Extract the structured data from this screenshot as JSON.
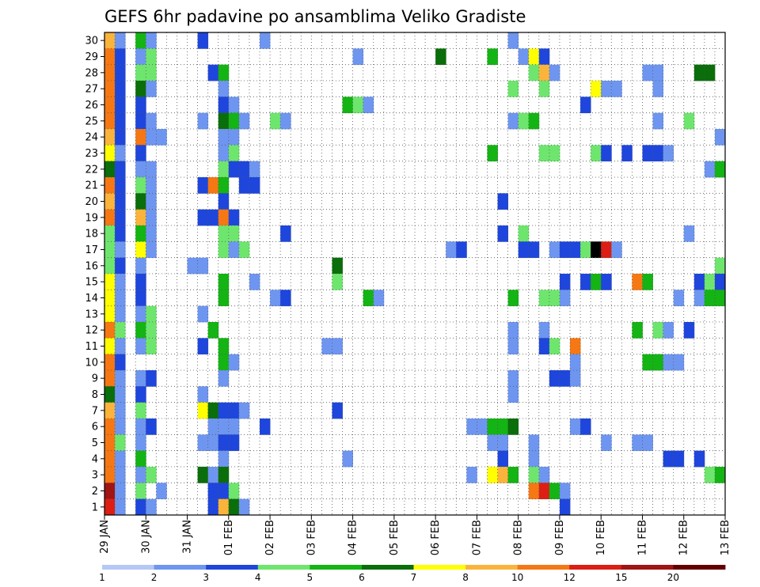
{
  "chart_data": {
    "type": "heatmap",
    "title": "GEFS 6hr padavine po ansamblima Veliko Gradiste",
    "xlabel": "",
    "ylabel": "",
    "x_ticks": [
      "29 JAN",
      "30 JAN",
      "31 JAN",
      "01 FEB",
      "02 FEB",
      "03 FEB",
      "04 FEB",
      "05 FEB",
      "06 FEB",
      "07 FEB",
      "08 FEB",
      "09 FEB",
      "10 FEB",
      "11 FEB",
      "12 FEB",
      "13 FEB"
    ],
    "y_ticks": [
      1,
      2,
      3,
      4,
      5,
      6,
      7,
      8,
      9,
      10,
      11,
      12,
      13,
      14,
      15,
      16,
      17,
      18,
      19,
      20,
      21,
      22,
      23,
      24,
      25,
      26,
      27,
      28,
      29,
      30
    ],
    "xlim": [
      0,
      60
    ],
    "ylim": [
      0.5,
      30.5
    ],
    "x_unit": "6-hour steps from 29 JAN 00Z",
    "grid": true,
    "legend": "bottom",
    "colorbar": {
      "labels": [
        "1",
        "2",
        "3",
        "4",
        "5",
        "6",
        "7",
        "8",
        "10",
        "12",
        "15",
        "20"
      ],
      "colors": [
        "#b4c8f5",
        "#6e96f0",
        "#1e46dc",
        "#6ee66e",
        "#14b414",
        "#0a6e0a",
        "#ffff00",
        "#fab43c",
        "#f57814",
        "#dc1e14",
        "#a01414",
        "#640000"
      ]
    },
    "cells": [
      [
        30,
        0,
        7
      ],
      [
        30,
        1,
        1
      ],
      [
        30,
        3,
        4
      ],
      [
        30,
        4,
        1
      ],
      [
        30,
        9,
        2
      ],
      [
        30,
        15,
        1
      ],
      [
        30,
        39,
        1
      ],
      [
        29,
        0,
        8
      ],
      [
        29,
        1,
        2
      ],
      [
        29,
        3,
        1
      ],
      [
        29,
        4,
        3
      ],
      [
        29,
        24,
        1
      ],
      [
        29,
        32,
        5
      ],
      [
        29,
        37,
        4
      ],
      [
        29,
        40,
        1
      ],
      [
        29,
        41,
        6
      ],
      [
        29,
        42,
        2
      ],
      [
        28,
        0,
        8
      ],
      [
        28,
        1,
        2
      ],
      [
        28,
        3,
        3
      ],
      [
        28,
        4,
        3
      ],
      [
        28,
        10,
        2
      ],
      [
        28,
        11,
        4
      ],
      [
        28,
        41,
        3
      ],
      [
        28,
        42,
        7
      ],
      [
        28,
        43,
        1
      ],
      [
        28,
        52,
        1
      ],
      [
        28,
        53,
        1
      ],
      [
        28,
        57,
        5
      ],
      [
        28,
        58,
        5
      ],
      [
        27,
        0,
        8
      ],
      [
        27,
        1,
        2
      ],
      [
        27,
        3,
        5
      ],
      [
        27,
        4,
        1
      ],
      [
        27,
        11,
        1
      ],
      [
        27,
        39,
        3
      ],
      [
        27,
        42,
        3
      ],
      [
        27,
        47,
        6
      ],
      [
        27,
        48,
        1
      ],
      [
        27,
        49,
        1
      ],
      [
        27,
        53,
        1
      ],
      [
        26,
        0,
        8
      ],
      [
        26,
        1,
        2
      ],
      [
        26,
        3,
        2
      ],
      [
        26,
        11,
        2
      ],
      [
        26,
        12,
        1
      ],
      [
        26,
        23,
        4
      ],
      [
        26,
        24,
        3
      ],
      [
        26,
        25,
        1
      ],
      [
        26,
        46,
        2
      ],
      [
        25,
        0,
        8
      ],
      [
        25,
        1,
        2
      ],
      [
        25,
        3,
        2
      ],
      [
        25,
        4,
        1
      ],
      [
        25,
        9,
        1
      ],
      [
        25,
        11,
        5
      ],
      [
        25,
        12,
        4
      ],
      [
        25,
        13,
        1
      ],
      [
        25,
        16,
        3
      ],
      [
        25,
        17,
        1
      ],
      [
        25,
        39,
        1
      ],
      [
        25,
        40,
        3
      ],
      [
        25,
        41,
        4
      ],
      [
        25,
        53,
        1
      ],
      [
        25,
        56,
        3
      ],
      [
        24,
        0,
        7
      ],
      [
        24,
        1,
        2
      ],
      [
        24,
        3,
        8
      ],
      [
        24,
        4,
        1
      ],
      [
        24,
        5,
        1
      ],
      [
        24,
        11,
        1
      ],
      [
        24,
        12,
        1
      ],
      [
        24,
        59,
        1
      ],
      [
        23,
        0,
        6
      ],
      [
        23,
        1,
        1
      ],
      [
        23,
        3,
        2
      ],
      [
        23,
        11,
        1
      ],
      [
        23,
        12,
        3
      ],
      [
        23,
        37,
        4
      ],
      [
        23,
        42,
        3
      ],
      [
        23,
        43,
        3
      ],
      [
        23,
        47,
        3
      ],
      [
        23,
        48,
        2
      ],
      [
        23,
        50,
        2
      ],
      [
        23,
        52,
        2
      ],
      [
        23,
        53,
        2
      ],
      [
        23,
        54,
        1
      ],
      [
        22,
        0,
        5
      ],
      [
        22,
        1,
        2
      ],
      [
        22,
        3,
        1
      ],
      [
        22,
        4,
        1
      ],
      [
        22,
        11,
        3
      ],
      [
        22,
        12,
        2
      ],
      [
        22,
        13,
        2
      ],
      [
        22,
        14,
        1
      ],
      [
        22,
        58,
        1
      ],
      [
        22,
        59,
        4
      ],
      [
        21,
        0,
        8
      ],
      [
        21,
        1,
        2
      ],
      [
        21,
        3,
        3
      ],
      [
        21,
        4,
        1
      ],
      [
        21,
        9,
        2
      ],
      [
        21,
        10,
        8
      ],
      [
        21,
        11,
        4
      ],
      [
        21,
        13,
        2
      ],
      [
        21,
        14,
        2
      ],
      [
        20,
        0,
        7
      ],
      [
        20,
        1,
        2
      ],
      [
        20,
        3,
        5
      ],
      [
        20,
        4,
        1
      ],
      [
        20,
        11,
        2
      ],
      [
        20,
        38,
        2
      ],
      [
        19,
        0,
        8
      ],
      [
        19,
        1,
        2
      ],
      [
        19,
        3,
        7
      ],
      [
        19,
        4,
        1
      ],
      [
        19,
        9,
        2
      ],
      [
        19,
        10,
        2
      ],
      [
        19,
        11,
        8
      ],
      [
        19,
        12,
        2
      ],
      [
        18,
        0,
        3
      ],
      [
        18,
        1,
        2
      ],
      [
        18,
        3,
        4
      ],
      [
        18,
        4,
        1
      ],
      [
        18,
        11,
        3
      ],
      [
        18,
        12,
        3
      ],
      [
        18,
        17,
        2
      ],
      [
        18,
        38,
        2
      ],
      [
        18,
        40,
        3
      ],
      [
        18,
        56,
        1
      ],
      [
        17,
        0,
        3
      ],
      [
        17,
        1,
        1
      ],
      [
        17,
        3,
        6
      ],
      [
        17,
        4,
        1
      ],
      [
        17,
        11,
        3
      ],
      [
        17,
        12,
        1
      ],
      [
        17,
        13,
        3
      ],
      [
        17,
        33,
        1
      ],
      [
        17,
        34,
        2
      ],
      [
        17,
        40,
        2
      ],
      [
        17,
        41,
        2
      ],
      [
        17,
        43,
        1
      ],
      [
        17,
        44,
        2
      ],
      [
        17,
        45,
        2
      ],
      [
        17,
        46,
        3
      ],
      [
        17,
        47,
        12
      ],
      [
        17,
        48,
        9
      ],
      [
        17,
        49,
        1
      ],
      [
        16,
        0,
        3
      ],
      [
        16,
        1,
        2
      ],
      [
        16,
        3,
        1
      ],
      [
        16,
        8,
        1
      ],
      [
        16,
        9,
        1
      ],
      [
        16,
        22,
        5
      ],
      [
        16,
        59,
        3
      ],
      [
        15,
        0,
        6
      ],
      [
        15,
        1,
        1
      ],
      [
        15,
        3,
        2
      ],
      [
        15,
        11,
        4
      ],
      [
        15,
        14,
        1
      ],
      [
        15,
        22,
        3
      ],
      [
        15,
        44,
        2
      ],
      [
        15,
        46,
        2
      ],
      [
        15,
        47,
        4
      ],
      [
        15,
        48,
        2
      ],
      [
        15,
        51,
        8
      ],
      [
        15,
        52,
        4
      ],
      [
        15,
        57,
        2
      ],
      [
        15,
        58,
        3
      ],
      [
        15,
        59,
        2
      ],
      [
        14,
        0,
        6
      ],
      [
        14,
        1,
        1
      ],
      [
        14,
        3,
        2
      ],
      [
        14,
        11,
        4
      ],
      [
        14,
        16,
        1
      ],
      [
        14,
        17,
        2
      ],
      [
        14,
        25,
        4
      ],
      [
        14,
        26,
        1
      ],
      [
        14,
        39,
        4
      ],
      [
        14,
        42,
        3
      ],
      [
        14,
        43,
        3
      ],
      [
        14,
        44,
        1
      ],
      [
        14,
        55,
        1
      ],
      [
        14,
        57,
        1
      ],
      [
        14,
        58,
        4
      ],
      [
        14,
        59,
        4
      ],
      [
        13,
        0,
        6
      ],
      [
        13,
        1,
        1
      ],
      [
        13,
        3,
        1
      ],
      [
        13,
        4,
        3
      ],
      [
        13,
        9,
        1
      ],
      [
        12,
        0,
        8
      ],
      [
        12,
        1,
        3
      ],
      [
        12,
        3,
        4
      ],
      [
        12,
        4,
        3
      ],
      [
        12,
        10,
        4
      ],
      [
        12,
        39,
        1
      ],
      [
        12,
        42,
        1
      ],
      [
        12,
        51,
        4
      ],
      [
        12,
        53,
        3
      ],
      [
        12,
        54,
        1
      ],
      [
        12,
        56,
        2
      ],
      [
        11,
        0,
        6
      ],
      [
        11,
        1,
        1
      ],
      [
        11,
        3,
        1
      ],
      [
        11,
        4,
        3
      ],
      [
        11,
        9,
        2
      ],
      [
        11,
        11,
        4
      ],
      [
        11,
        21,
        1
      ],
      [
        11,
        22,
        1
      ],
      [
        11,
        39,
        1
      ],
      [
        11,
        42,
        2
      ],
      [
        11,
        43,
        3
      ],
      [
        11,
        45,
        8
      ],
      [
        10,
        0,
        8
      ],
      [
        10,
        1,
        2
      ],
      [
        10,
        11,
        4
      ],
      [
        10,
        12,
        1
      ],
      [
        10,
        45,
        1
      ],
      [
        10,
        52,
        4
      ],
      [
        10,
        53,
        4
      ],
      [
        10,
        54,
        1
      ],
      [
        10,
        55,
        1
      ],
      [
        9,
        0,
        8
      ],
      [
        9,
        1,
        1
      ],
      [
        9,
        3,
        1
      ],
      [
        9,
        4,
        2
      ],
      [
        9,
        11,
        1
      ],
      [
        9,
        39,
        1
      ],
      [
        9,
        43,
        2
      ],
      [
        9,
        44,
        2
      ],
      [
        9,
        45,
        1
      ],
      [
        8,
        0,
        5
      ],
      [
        8,
        1,
        1
      ],
      [
        8,
        3,
        2
      ],
      [
        8,
        9,
        1
      ],
      [
        8,
        39,
        1
      ],
      [
        7,
        0,
        7
      ],
      [
        7,
        1,
        1
      ],
      [
        7,
        3,
        3
      ],
      [
        7,
        9,
        6
      ],
      [
        7,
        10,
        5
      ],
      [
        7,
        11,
        2
      ],
      [
        7,
        12,
        2
      ],
      [
        7,
        13,
        1
      ],
      [
        7,
        22,
        2
      ],
      [
        6,
        0,
        8
      ],
      [
        6,
        1,
        1
      ],
      [
        6,
        3,
        1
      ],
      [
        6,
        4,
        2
      ],
      [
        6,
        10,
        1
      ],
      [
        6,
        11,
        1
      ],
      [
        6,
        12,
        1
      ],
      [
        6,
        15,
        2
      ],
      [
        6,
        35,
        1
      ],
      [
        6,
        36,
        1
      ],
      [
        6,
        37,
        4
      ],
      [
        6,
        38,
        4
      ],
      [
        6,
        39,
        5
      ],
      [
        6,
        45,
        1
      ],
      [
        6,
        46,
        2
      ],
      [
        5,
        0,
        8
      ],
      [
        5,
        1,
        3
      ],
      [
        5,
        3,
        1
      ],
      [
        5,
        9,
        1
      ],
      [
        5,
        10,
        1
      ],
      [
        5,
        11,
        2
      ],
      [
        5,
        12,
        2
      ],
      [
        5,
        37,
        1
      ],
      [
        5,
        38,
        1
      ],
      [
        5,
        41,
        1
      ],
      [
        5,
        48,
        1
      ],
      [
        5,
        51,
        1
      ],
      [
        5,
        52,
        1
      ],
      [
        4,
        0,
        8
      ],
      [
        4,
        1,
        1
      ],
      [
        4,
        3,
        4
      ],
      [
        4,
        11,
        1
      ],
      [
        4,
        23,
        1
      ],
      [
        4,
        38,
        2
      ],
      [
        4,
        41,
        1
      ],
      [
        4,
        54,
        2
      ],
      [
        4,
        55,
        2
      ],
      [
        4,
        57,
        2
      ],
      [
        3,
        0,
        8
      ],
      [
        3,
        1,
        1
      ],
      [
        3,
        3,
        1
      ],
      [
        3,
        4,
        3
      ],
      [
        3,
        9,
        5
      ],
      [
        3,
        10,
        1
      ],
      [
        3,
        11,
        5
      ],
      [
        3,
        35,
        1
      ],
      [
        3,
        37,
        6
      ],
      [
        3,
        38,
        7
      ],
      [
        3,
        39,
        4
      ],
      [
        3,
        41,
        3
      ],
      [
        3,
        42,
        1
      ],
      [
        3,
        58,
        3
      ],
      [
        3,
        59,
        4
      ],
      [
        2,
        0,
        10
      ],
      [
        2,
        1,
        1
      ],
      [
        2,
        3,
        3
      ],
      [
        2,
        5,
        1
      ],
      [
        2,
        10,
        2
      ],
      [
        2,
        11,
        2
      ],
      [
        2,
        12,
        3
      ],
      [
        2,
        41,
        8
      ],
      [
        2,
        42,
        9
      ],
      [
        2,
        43,
        4
      ],
      [
        2,
        44,
        1
      ],
      [
        1,
        0,
        9
      ],
      [
        1,
        1,
        1
      ],
      [
        1,
        3,
        2
      ],
      [
        1,
        4,
        1
      ],
      [
        1,
        10,
        2
      ],
      [
        1,
        11,
        7
      ],
      [
        1,
        12,
        5
      ],
      [
        1,
        13,
        1
      ],
      [
        1,
        44,
        2
      ]
    ]
  }
}
